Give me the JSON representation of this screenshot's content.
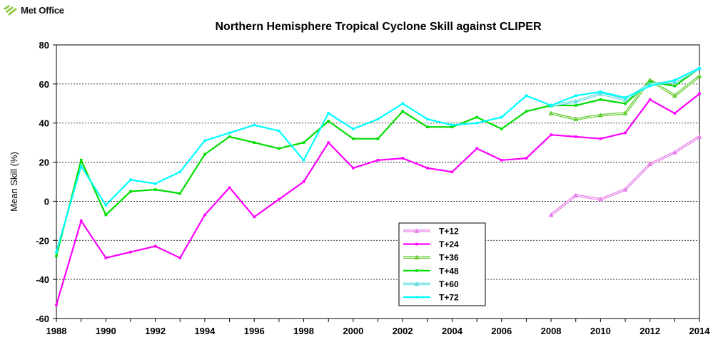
{
  "logo": {
    "text": "Met Office",
    "color": "#8cc63f"
  },
  "chart_data": {
    "type": "line",
    "title": "Northern Hemisphere Tropical Cyclone Skill against CLIPER",
    "xlabel": "",
    "ylabel": "Mean Skill  (%)",
    "xlim": [
      1988,
      2014
    ],
    "ylim": [
      -60,
      80
    ],
    "x_ticks": [
      "1988",
      "1990",
      "1992",
      "1994",
      "1996",
      "1998",
      "2000",
      "2002",
      "2004",
      "2006",
      "2008",
      "2010",
      "2012",
      "2014"
    ],
    "y_ticks": [
      "-60",
      "-40",
      "-20",
      "0",
      "20",
      "40",
      "60",
      "80"
    ],
    "grid": "horizontal dashed",
    "legend_position": "center-bottom",
    "series": [
      {
        "name": "T+12",
        "color": "#e87ee8",
        "marker": "triangle",
        "double": true,
        "x": [
          2008,
          2009,
          2010,
          2011,
          2012,
          2013,
          2014
        ],
        "y": [
          -7,
          3,
          1,
          6,
          19,
          25,
          33
        ]
      },
      {
        "name": "T+24",
        "color": "#ff00ff",
        "marker": "dot",
        "double": false,
        "x": [
          1988,
          1989,
          1990,
          1991,
          1992,
          1993,
          1994,
          1995,
          1996,
          1997,
          1998,
          1999,
          2000,
          2001,
          2002,
          2003,
          2004,
          2005,
          2006,
          2007,
          2008,
          2009,
          2010,
          2011,
          2012,
          2013,
          2014
        ],
        "y": [
          -53,
          -10,
          -29,
          -26,
          -23,
          -29,
          -7,
          7,
          -8,
          1,
          10,
          30,
          17,
          21,
          22,
          17,
          15,
          27,
          21,
          22,
          34,
          33,
          32,
          35,
          52,
          45,
          55
        ]
      },
      {
        "name": "T+36",
        "color": "#66cc33",
        "marker": "triangle",
        "double": true,
        "x": [
          2008,
          2009,
          2010,
          2011,
          2012,
          2013,
          2014
        ],
        "y": [
          45,
          42,
          44,
          45,
          62,
          54,
          64
        ]
      },
      {
        "name": "T+48",
        "color": "#00dd00",
        "marker": "dot",
        "double": false,
        "x": [
          1988,
          1989,
          1990,
          1991,
          1992,
          1993,
          1994,
          1995,
          1996,
          1997,
          1998,
          1999,
          2000,
          2001,
          2002,
          2003,
          2004,
          2005,
          2006,
          2007,
          2008,
          2009,
          2010,
          2011,
          2012,
          2013,
          2014
        ],
        "y": [
          -28,
          21,
          -7,
          5,
          6,
          4,
          24,
          33,
          30,
          27,
          30,
          41,
          32,
          32,
          46,
          38,
          38,
          43,
          37,
          46,
          49,
          49,
          52,
          50,
          61,
          59,
          68
        ]
      },
      {
        "name": "T+60",
        "color": "#66dddd",
        "marker": "triangle",
        "double": true,
        "x": [
          2008,
          2009,
          2010,
          2011,
          2012,
          2013,
          2014
        ],
        "y": [
          49,
          51,
          55,
          52,
          60,
          61,
          68
        ]
      },
      {
        "name": "T+72",
        "color": "#00ffff",
        "marker": "dot",
        "double": false,
        "x": [
          1988,
          1989,
          1990,
          1991,
          1992,
          1993,
          1994,
          1995,
          1996,
          1997,
          1998,
          1999,
          2000,
          2001,
          2002,
          2003,
          2004,
          2005,
          2006,
          2007,
          2008,
          2009,
          2010,
          2011,
          2012,
          2013,
          2014
        ],
        "y": [
          -26,
          18,
          -2,
          11,
          9,
          15,
          31,
          35,
          39,
          36,
          21,
          45,
          37,
          42,
          50,
          42,
          39,
          40,
          43,
          54,
          49,
          54,
          56,
          53,
          59,
          62,
          68
        ]
      }
    ]
  }
}
